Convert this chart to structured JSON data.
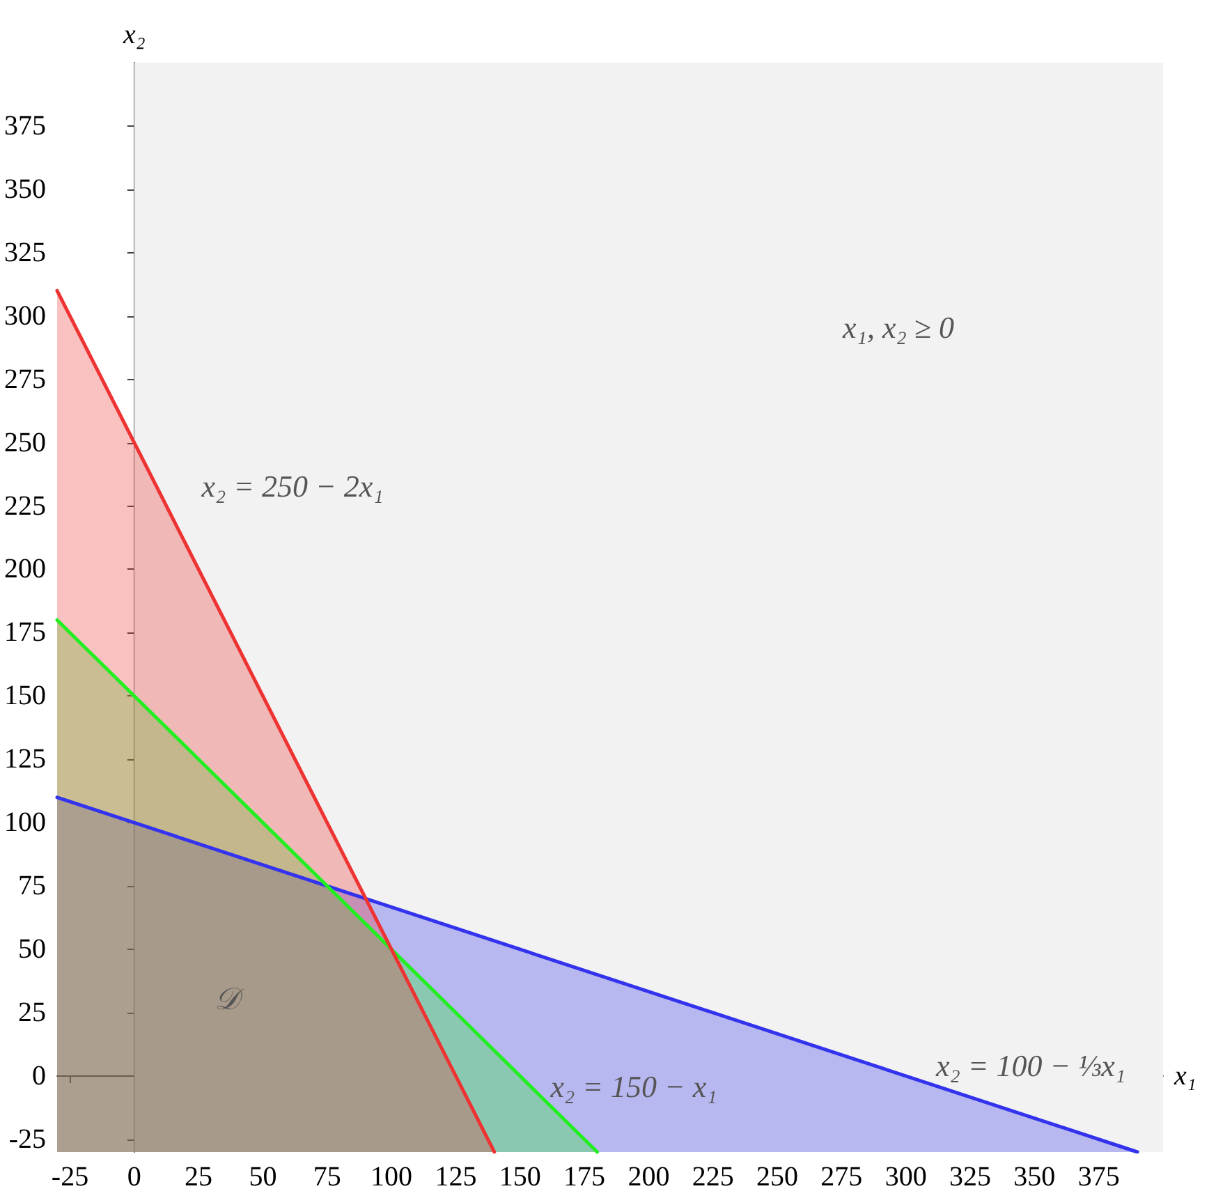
{
  "chart_data": {
    "type": "area",
    "xlabel": "x₁",
    "ylabel": "x₂",
    "series": [
      {
        "color": "#3333ee",
        "x": [
          -30,
          390
        ],
        "values": [
          110,
          -30
        ]
      },
      {
        "color": "#22ee22",
        "x": [
          -30,
          180
        ],
        "values": [
          180,
          -30
        ]
      },
      {
        "color": "#ee3333",
        "x": [
          -30,
          140
        ],
        "values": [
          310,
          -30
        ]
      }
    ],
    "xlim": [
      -30,
      400
    ],
    "ylim": [
      -30,
      400
    ],
    "xticks": [
      -25,
      0,
      25,
      50,
      75,
      100,
      125,
      150,
      175,
      200,
      225,
      250,
      275,
      300,
      325,
      350,
      375
    ],
    "yticks": [
      -25,
      0,
      25,
      50,
      75,
      100,
      125,
      150,
      175,
      200,
      225,
      250,
      275,
      300,
      325,
      350,
      375
    ],
    "bands": [
      {
        "axis": "x",
        "from": 0,
        "to": 400,
        "color": "#f2f2f2"
      }
    ],
    "annotations": [
      "x₂ = 250 − 2x₁",
      "x₂ = 150 − x₁",
      "x₂ = 100 − ⅓x₁",
      "x₁, x₂ ≥ 0",
      "𝒟"
    ],
    "marker": "none",
    "line_style": "solid"
  }
}
